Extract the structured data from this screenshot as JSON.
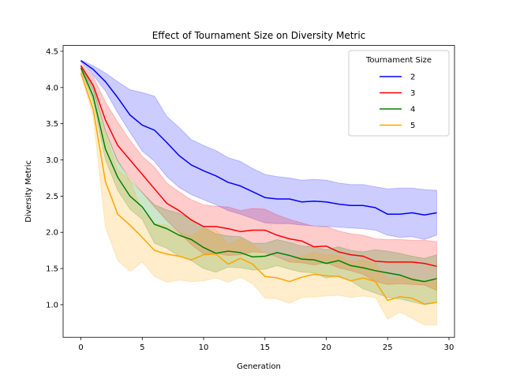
{
  "chart_data": {
    "type": "line",
    "title": "Effect of Tournament Size on Diversity Metric",
    "xlabel": "Generation",
    "ylabel": "Diversity Metric",
    "xlim": [
      -1.45,
      30.45
    ],
    "ylim": [
      0.55,
      4.58
    ],
    "xticks": [
      0,
      5,
      10,
      15,
      20,
      25,
      30
    ],
    "yticks": [
      1.0,
      1.5,
      2.0,
      2.5,
      3.0,
      3.5,
      4.0,
      4.5
    ],
    "ytick_labels": [
      "1.0",
      "1.5",
      "2.0",
      "2.5",
      "3.0",
      "3.5",
      "4.0",
      "4.5"
    ],
    "grid": false,
    "legend": {
      "title": "Tournament Size",
      "placement": "top-right"
    },
    "x": [
      0,
      1,
      2,
      3,
      4,
      5,
      6,
      7,
      8,
      9,
      10,
      11,
      12,
      13,
      14,
      15,
      16,
      17,
      18,
      19,
      20,
      21,
      22,
      23,
      24,
      25,
      26,
      27,
      28,
      29
    ],
    "series": [
      {
        "name": "2",
        "color": "#0000ff",
        "mean": [
          4.37,
          4.25,
          4.08,
          3.86,
          3.62,
          3.48,
          3.41,
          3.24,
          3.06,
          2.93,
          2.85,
          2.78,
          2.69,
          2.64,
          2.56,
          2.48,
          2.46,
          2.46,
          2.42,
          2.43,
          2.42,
          2.39,
          2.37,
          2.37,
          2.34,
          2.25,
          2.25,
          2.27,
          2.24,
          2.27
        ],
        "lower": [
          4.35,
          4.17,
          3.95,
          3.65,
          3.38,
          3.12,
          2.98,
          2.77,
          2.62,
          2.52,
          2.45,
          2.38,
          2.3,
          2.25,
          2.19,
          2.13,
          2.12,
          2.12,
          2.1,
          2.09,
          2.08,
          2.07,
          2.06,
          2.05,
          2.03,
          1.96,
          1.93,
          1.94,
          1.9,
          1.96
        ],
        "upper": [
          4.38,
          4.3,
          4.2,
          4.08,
          3.97,
          3.93,
          3.88,
          3.6,
          3.45,
          3.28,
          3.2,
          3.13,
          3.03,
          2.98,
          2.88,
          2.8,
          2.77,
          2.75,
          2.72,
          2.73,
          2.72,
          2.68,
          2.66,
          2.66,
          2.63,
          2.6,
          2.61,
          2.61,
          2.59,
          2.58
        ]
      },
      {
        "name": "3",
        "color": "#ff0000",
        "mean": [
          4.3,
          4.03,
          3.55,
          3.2,
          3.0,
          2.8,
          2.6,
          2.4,
          2.3,
          2.17,
          2.08,
          2.08,
          2.05,
          2.01,
          2.03,
          2.03,
          1.96,
          1.91,
          1.88,
          1.8,
          1.81,
          1.73,
          1.69,
          1.67,
          1.6,
          1.59,
          1.59,
          1.59,
          1.57,
          1.53
        ],
        "lower": [
          4.28,
          3.95,
          3.4,
          2.98,
          2.75,
          2.55,
          2.35,
          2.16,
          2.0,
          1.83,
          1.7,
          1.71,
          1.68,
          1.69,
          1.73,
          1.72,
          1.66,
          1.59,
          1.58,
          1.55,
          1.58,
          1.51,
          1.47,
          1.42,
          1.32,
          1.28,
          1.29,
          1.28,
          1.27,
          1.2
        ],
        "upper": [
          4.32,
          4.15,
          3.8,
          3.52,
          3.27,
          3.05,
          2.9,
          2.68,
          2.56,
          2.45,
          2.38,
          2.36,
          2.35,
          2.3,
          2.33,
          2.32,
          2.24,
          2.18,
          2.13,
          2.08,
          2.08,
          2.02,
          1.98,
          1.96,
          1.91,
          1.9,
          1.9,
          1.89,
          1.89,
          1.87
        ]
      },
      {
        "name": "4",
        "color": "#008000",
        "mean": [
          4.27,
          3.88,
          3.15,
          2.76,
          2.5,
          2.35,
          2.11,
          2.05,
          1.96,
          1.9,
          1.79,
          1.71,
          1.74,
          1.72,
          1.66,
          1.67,
          1.72,
          1.68,
          1.63,
          1.62,
          1.57,
          1.61,
          1.54,
          1.51,
          1.47,
          1.44,
          1.41,
          1.35,
          1.32,
          1.36
        ],
        "lower": [
          4.24,
          3.8,
          3.0,
          2.58,
          2.32,
          2.18,
          1.85,
          1.78,
          1.67,
          1.61,
          1.5,
          1.45,
          1.52,
          1.51,
          1.48,
          1.49,
          1.54,
          1.49,
          1.45,
          1.44,
          1.37,
          1.4,
          1.33,
          1.22,
          1.16,
          1.1,
          1.08,
          1.04,
          1.0,
          1.03
        ],
        "upper": [
          4.29,
          4.0,
          3.4,
          2.99,
          2.72,
          2.55,
          2.38,
          2.31,
          2.26,
          2.18,
          2.07,
          1.98,
          1.95,
          1.94,
          1.85,
          1.85,
          1.9,
          1.86,
          1.81,
          1.8,
          1.76,
          1.8,
          1.75,
          1.73,
          1.76,
          1.74,
          1.71,
          1.67,
          1.64,
          1.69
        ]
      },
      {
        "name": "5",
        "color": "#ffa500",
        "mean": [
          4.2,
          3.7,
          2.7,
          2.25,
          2.1,
          1.93,
          1.75,
          1.7,
          1.67,
          1.62,
          1.69,
          1.7,
          1.56,
          1.64,
          1.56,
          1.39,
          1.37,
          1.32,
          1.38,
          1.42,
          1.4,
          1.39,
          1.33,
          1.37,
          1.32,
          1.06,
          1.11,
          1.09,
          1.01,
          1.03
        ],
        "lower": [
          4.18,
          3.6,
          2.07,
          1.61,
          1.46,
          1.59,
          1.39,
          1.31,
          1.34,
          1.32,
          1.33,
          1.37,
          1.31,
          1.38,
          1.29,
          1.09,
          1.08,
          1.02,
          1.1,
          1.11,
          1.12,
          1.13,
          1.1,
          1.12,
          1.1,
          0.8,
          0.9,
          0.81,
          0.72,
          0.72
        ],
        "upper": [
          4.22,
          3.85,
          3.35,
          2.86,
          2.73,
          2.28,
          2.12,
          2.1,
          2.0,
          1.95,
          2.05,
          2.04,
          1.83,
          1.91,
          1.83,
          1.7,
          1.65,
          1.63,
          1.67,
          1.72,
          1.69,
          1.68,
          1.59,
          1.62,
          1.56,
          1.35,
          1.38,
          1.37,
          1.32,
          1.33
        ]
      }
    ]
  }
}
